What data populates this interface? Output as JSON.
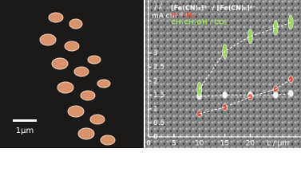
{
  "image_label": "1µm",
  "chart_data": {
    "type": "scatter",
    "y_label": "j /",
    "y_unit": "mA cm⁻²",
    "x_label": "L / µm",
    "x": [
      10,
      15,
      20,
      25,
      28
    ],
    "series": [
      {
        "name": "[Fe(CN)₆]³⁻ / [Fe(CN)₆]⁴⁻",
        "color": "#ffffff",
        "values": [
          1.45,
          1.5,
          1.5,
          1.5,
          1.55
        ]
      },
      {
        "name": "H⁺ / H₂",
        "color": "#e0503a",
        "values": [
          0.83,
          1.06,
          1.43,
          1.71,
          2.06
        ]
      },
      {
        "name": "CH₃CH₂OH / CO₂",
        "color": "#9be05a",
        "values": [
          1.7,
          3.06,
          3.6,
          3.9,
          4.1
        ]
      }
    ],
    "xlim": [
      0,
      30
    ],
    "xticks": [
      0,
      5,
      10,
      15,
      20
    ],
    "ylim": [
      0,
      4.9
    ],
    "yticks": [
      0,
      0.5,
      1,
      1.5,
      2,
      2.5,
      3
    ]
  }
}
